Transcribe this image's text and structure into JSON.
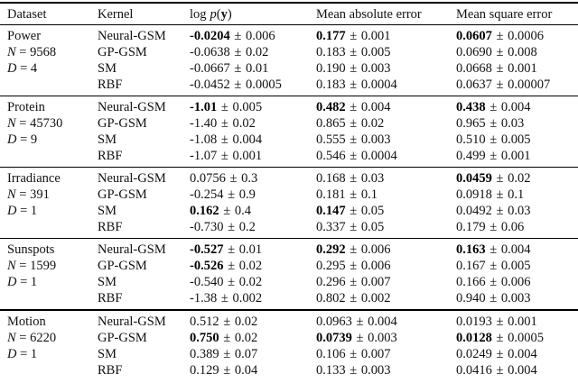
{
  "meta": {
    "pm": "±",
    "background": "#ffffff",
    "text_color": "#111111",
    "rule_color": "#000000"
  },
  "table": {
    "columns": [
      "Dataset",
      "Kernel",
      "log p(y)",
      "Mean absolute error",
      "Mean square error"
    ],
    "logp_header": {
      "log": "log",
      "p": "p",
      "open": "(",
      "y": "y",
      "close": ")"
    },
    "blocks": [
      {
        "dataset": {
          "name": "Power",
          "n_var": "N",
          "n_val": "= 9568",
          "d_var": "D",
          "d_val": "= 4"
        },
        "rows": [
          {
            "kernel": "Neural-GSM",
            "logp": {
              "v": "-0.0204",
              "e": "0.006",
              "b": true
            },
            "mae": {
              "v": "0.177",
              "e": "0.001",
              "b": true
            },
            "mse": {
              "v": "0.0607",
              "e": "0.0006",
              "b": true
            }
          },
          {
            "kernel": "GP-GSM",
            "logp": {
              "v": "-0.0638",
              "e": "0.02",
              "b": false
            },
            "mae": {
              "v": "0.183",
              "e": "0.005",
              "b": false
            },
            "mse": {
              "v": "0.0690",
              "e": "0.008",
              "b": false
            }
          },
          {
            "kernel": "SM",
            "logp": {
              "v": "-0.0667",
              "e": "0.01",
              "b": false
            },
            "mae": {
              "v": "0.190",
              "e": "0.003",
              "b": false
            },
            "mse": {
              "v": "0.0668",
              "e": "0.001",
              "b": false
            }
          },
          {
            "kernel": "RBF",
            "logp": {
              "v": "-0.0452",
              "e": "0.0005",
              "b": false
            },
            "mae": {
              "v": "0.183",
              "e": "0.0004",
              "b": false
            },
            "mse": {
              "v": "0.0637",
              "e": "0.00007",
              "b": false
            }
          }
        ]
      },
      {
        "dataset": {
          "name": "Protein",
          "n_var": "N",
          "n_val": "= 45730",
          "d_var": "D",
          "d_val": "= 9"
        },
        "rows": [
          {
            "kernel": "Neural-GSM",
            "logp": {
              "v": "-1.01",
              "e": "0.005",
              "b": true
            },
            "mae": {
              "v": "0.482",
              "e": "0.004",
              "b": true
            },
            "mse": {
              "v": "0.438",
              "e": "0.004",
              "b": true
            }
          },
          {
            "kernel": "GP-GSM",
            "logp": {
              "v": "-1.40",
              "e": "0.02",
              "b": false
            },
            "mae": {
              "v": "0.865",
              "e": "0.02",
              "b": false
            },
            "mse": {
              "v": "0.965",
              "e": "0.03",
              "b": false
            }
          },
          {
            "kernel": "SM",
            "logp": {
              "v": "-1.08",
              "e": "0.004",
              "b": false
            },
            "mae": {
              "v": "0.555",
              "e": "0.003",
              "b": false
            },
            "mse": {
              "v": "0.510",
              "e": "0.005",
              "b": false
            }
          },
          {
            "kernel": "RBF",
            "logp": {
              "v": "-1.07",
              "e": "0.001",
              "b": false
            },
            "mae": {
              "v": "0.546",
              "e": "0.0004",
              "b": false
            },
            "mse": {
              "v": "0.499",
              "e": "0.001",
              "b": false
            }
          }
        ]
      },
      {
        "dataset": {
          "name": "Irradiance",
          "n_var": "N",
          "n_val": "= 391",
          "d_var": "D",
          "d_val": "= 1"
        },
        "rows": [
          {
            "kernel": "Neural-GSM",
            "logp": {
              "v": "0.0756",
              "e": "0.3",
              "b": false
            },
            "mae": {
              "v": "0.168",
              "e": "0.03",
              "b": false
            },
            "mse": {
              "v": "0.0459",
              "e": "0.02",
              "b": true
            }
          },
          {
            "kernel": "GP-GSM",
            "logp": {
              "v": "-0.254",
              "e": "0.9",
              "b": false
            },
            "mae": {
              "v": "0.181",
              "e": "0.1",
              "b": false
            },
            "mse": {
              "v": "0.0918",
              "e": "0.1",
              "b": false
            }
          },
          {
            "kernel": "SM",
            "logp": {
              "v": "0.162",
              "e": "0.4",
              "b": true
            },
            "mae": {
              "v": "0.147",
              "e": "0.05",
              "b": true
            },
            "mse": {
              "v": "0.0492",
              "e": "0.03",
              "b": false
            }
          },
          {
            "kernel": "RBF",
            "logp": {
              "v": "-0.730",
              "e": "0.2",
              "b": false
            },
            "mae": {
              "v": "0.337",
              "e": "0.05",
              "b": false
            },
            "mse": {
              "v": "0.179",
              "e": "0.06",
              "b": false
            }
          }
        ]
      },
      {
        "dataset": {
          "name": "Sunspots",
          "n_var": "N",
          "n_val": "= 1599",
          "d_var": "D",
          "d_val": "= 1"
        },
        "rows": [
          {
            "kernel": "Neural-GSM",
            "logp": {
              "v": "-0.527",
              "e": "0.01",
              "b": true
            },
            "mae": {
              "v": "0.292",
              "e": "0.006",
              "b": true
            },
            "mse": {
              "v": "0.163",
              "e": "0.004",
              "b": true
            }
          },
          {
            "kernel": "GP-GSM",
            "logp": {
              "v": "-0.526",
              "e": "0.02",
              "b": true
            },
            "mae": {
              "v": "0.295",
              "e": "0.006",
              "b": false
            },
            "mse": {
              "v": "0.167",
              "e": "0.005",
              "b": false
            }
          },
          {
            "kernel": "SM",
            "logp": {
              "v": "-0.540",
              "e": "0.02",
              "b": false
            },
            "mae": {
              "v": "0.296",
              "e": "0.007",
              "b": false
            },
            "mse": {
              "v": "0.166",
              "e": "0.006",
              "b": false
            }
          },
          {
            "kernel": "RBF",
            "logp": {
              "v": "-1.38",
              "e": "0.002",
              "b": false
            },
            "mae": {
              "v": "0.802",
              "e": "0.002",
              "b": false
            },
            "mse": {
              "v": "0.940",
              "e": "0.003",
              "b": false
            }
          }
        ]
      },
      {
        "dataset": {
          "name": "Motion",
          "n_var": "N",
          "n_val": "= 6220",
          "d_var": "D",
          "d_val": "= 1"
        },
        "rows": [
          {
            "kernel": "Neural-GSM",
            "logp": {
              "v": "0.512",
              "e": "0.02",
              "b": false
            },
            "mae": {
              "v": "0.0963",
              "e": "0.004",
              "b": false
            },
            "mse": {
              "v": "0.0193",
              "e": "0.001",
              "b": false
            }
          },
          {
            "kernel": "GP-GSM",
            "logp": {
              "v": "0.750",
              "e": "0.02",
              "b": true
            },
            "mae": {
              "v": "0.0739",
              "e": "0.003",
              "b": true
            },
            "mse": {
              "v": "0.0128",
              "e": "0.0005",
              "b": true
            }
          },
          {
            "kernel": "SM",
            "logp": {
              "v": "0.389",
              "e": "0.07",
              "b": false
            },
            "mae": {
              "v": "0.106",
              "e": "0.007",
              "b": false
            },
            "mse": {
              "v": "0.0249",
              "e": "0.004",
              "b": false
            }
          },
          {
            "kernel": "RBF",
            "logp": {
              "v": "0.129",
              "e": "0.04",
              "b": false
            },
            "mae": {
              "v": "0.133",
              "e": "0.003",
              "b": false
            },
            "mse": {
              "v": "0.0416",
              "e": "0.004",
              "b": false
            }
          }
        ]
      }
    ]
  }
}
